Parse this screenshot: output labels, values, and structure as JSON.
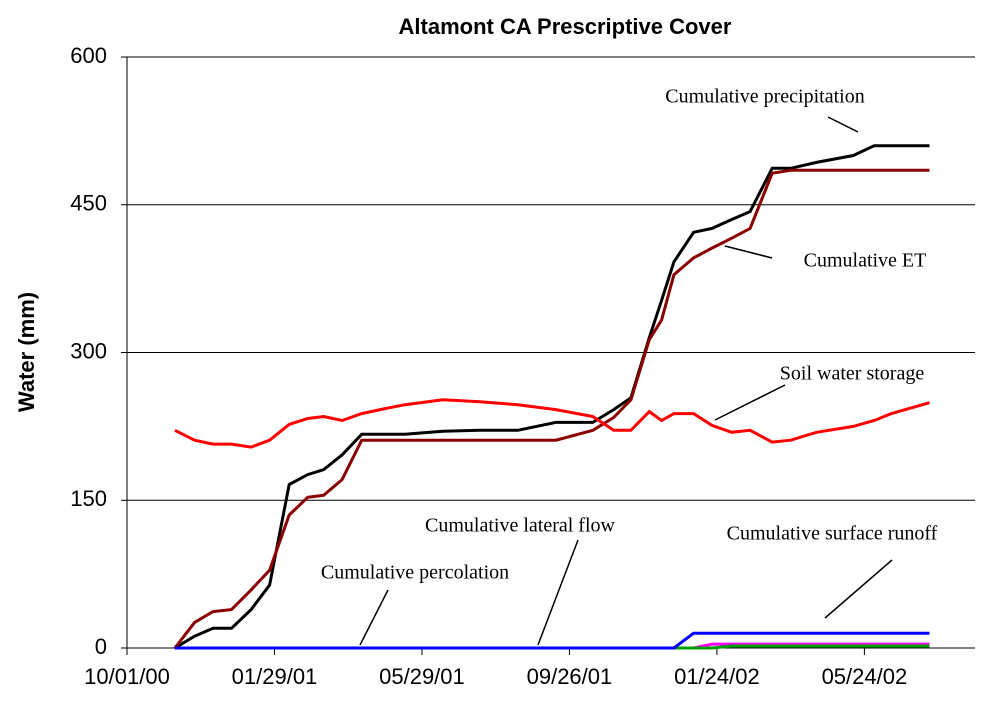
{
  "chart_data": {
    "type": "line",
    "title": "Altamont CA Prescriptive Cover",
    "y_label": "Water (mm)",
    "x": [
      "11/09/00",
      "11/25/00",
      "12/10/00",
      "12/25/00",
      "01/10/01",
      "01/25/01",
      "02/10/01",
      "02/25/01",
      "03/10/01",
      "03/25/01",
      "04/10/01",
      "04/25/01",
      "05/15/01",
      "06/15/01",
      "07/15/01",
      "08/15/01",
      "09/15/01",
      "10/15/01",
      "11/01/01",
      "11/15/01",
      "11/30/01",
      "12/10/01",
      "12/20/01",
      "01/05/02",
      "01/20/02",
      "02/05/02",
      "02/20/02",
      "03/10/02",
      "03/25/02",
      "04/15/02",
      "05/15/02",
      "06/01/02",
      "06/15/02",
      "07/16/02"
    ],
    "series": [
      {
        "name": "Cumulative precipitation",
        "color": "#000000",
        "values": [
          0,
          12,
          20,
          20,
          39,
          64,
          166,
          176,
          181,
          196,
          217,
          217,
          217,
          220,
          221,
          221,
          229,
          229,
          242,
          254,
          315,
          353,
          392,
          422,
          426,
          435,
          443,
          487,
          487,
          493,
          500,
          510,
          510,
          510
        ]
      },
      {
        "name": "Cumulative ET",
        "color": "#8b0000",
        "values": [
          0,
          26,
          37,
          39,
          59,
          79,
          135,
          153,
          155,
          171,
          211,
          211,
          211,
          211,
          211,
          211,
          211,
          221,
          234,
          252,
          313,
          333,
          379,
          396,
          406,
          416,
          426,
          482,
          485,
          485,
          485,
          485,
          485,
          485
        ]
      },
      {
        "name": "Soil water storage",
        "color": "#ff0000",
        "values": [
          221,
          211,
          207,
          207,
          204,
          211,
          227,
          233,
          235,
          231,
          238,
          242,
          247,
          252,
          250,
          247,
          242,
          235,
          221,
          221,
          240,
          231,
          238,
          238,
          226,
          219,
          221,
          209,
          211,
          219,
          225,
          231,
          238,
          249
        ]
      },
      {
        "name": "Cumulative lateral flow",
        "color": "#ff00ff",
        "values": [
          0,
          0,
          0,
          0,
          0,
          0,
          0,
          0,
          0,
          0,
          0,
          0,
          0,
          0,
          0,
          0,
          0,
          0,
          0,
          0,
          0,
          0,
          0,
          0,
          4,
          4,
          4,
          4,
          4,
          4,
          4,
          4,
          4,
          4
        ]
      },
      {
        "name": "Cumulative percolation",
        "color": "#00a000",
        "values": [
          0,
          0,
          0,
          0,
          0,
          0,
          0,
          0,
          0,
          0,
          0,
          0,
          0,
          0,
          0,
          0,
          0,
          0,
          0,
          0,
          0,
          0,
          0,
          0,
          0,
          2,
          2,
          2,
          2,
          2,
          2,
          2,
          2,
          2
        ]
      },
      {
        "name": "Cumulative surface runoff",
        "color": "#0000ff",
        "values": [
          0,
          0,
          0,
          0,
          0,
          0,
          0,
          0,
          0,
          0,
          0,
          0,
          0,
          0,
          0,
          0,
          0,
          0,
          0,
          0,
          0,
          0,
          0,
          15,
          15,
          15,
          15,
          15,
          15,
          15,
          15,
          15,
          15,
          15
        ]
      }
    ],
    "xlim": [
      "10/01/00",
      "08/22/02"
    ],
    "xticks": [
      "10/01/00",
      "01/29/01",
      "05/29/01",
      "09/26/01",
      "01/24/02",
      "05/24/02"
    ],
    "ylim": [
      0,
      600
    ],
    "yticks": [
      0,
      150,
      300,
      450,
      600
    ],
    "grid": true
  }
}
